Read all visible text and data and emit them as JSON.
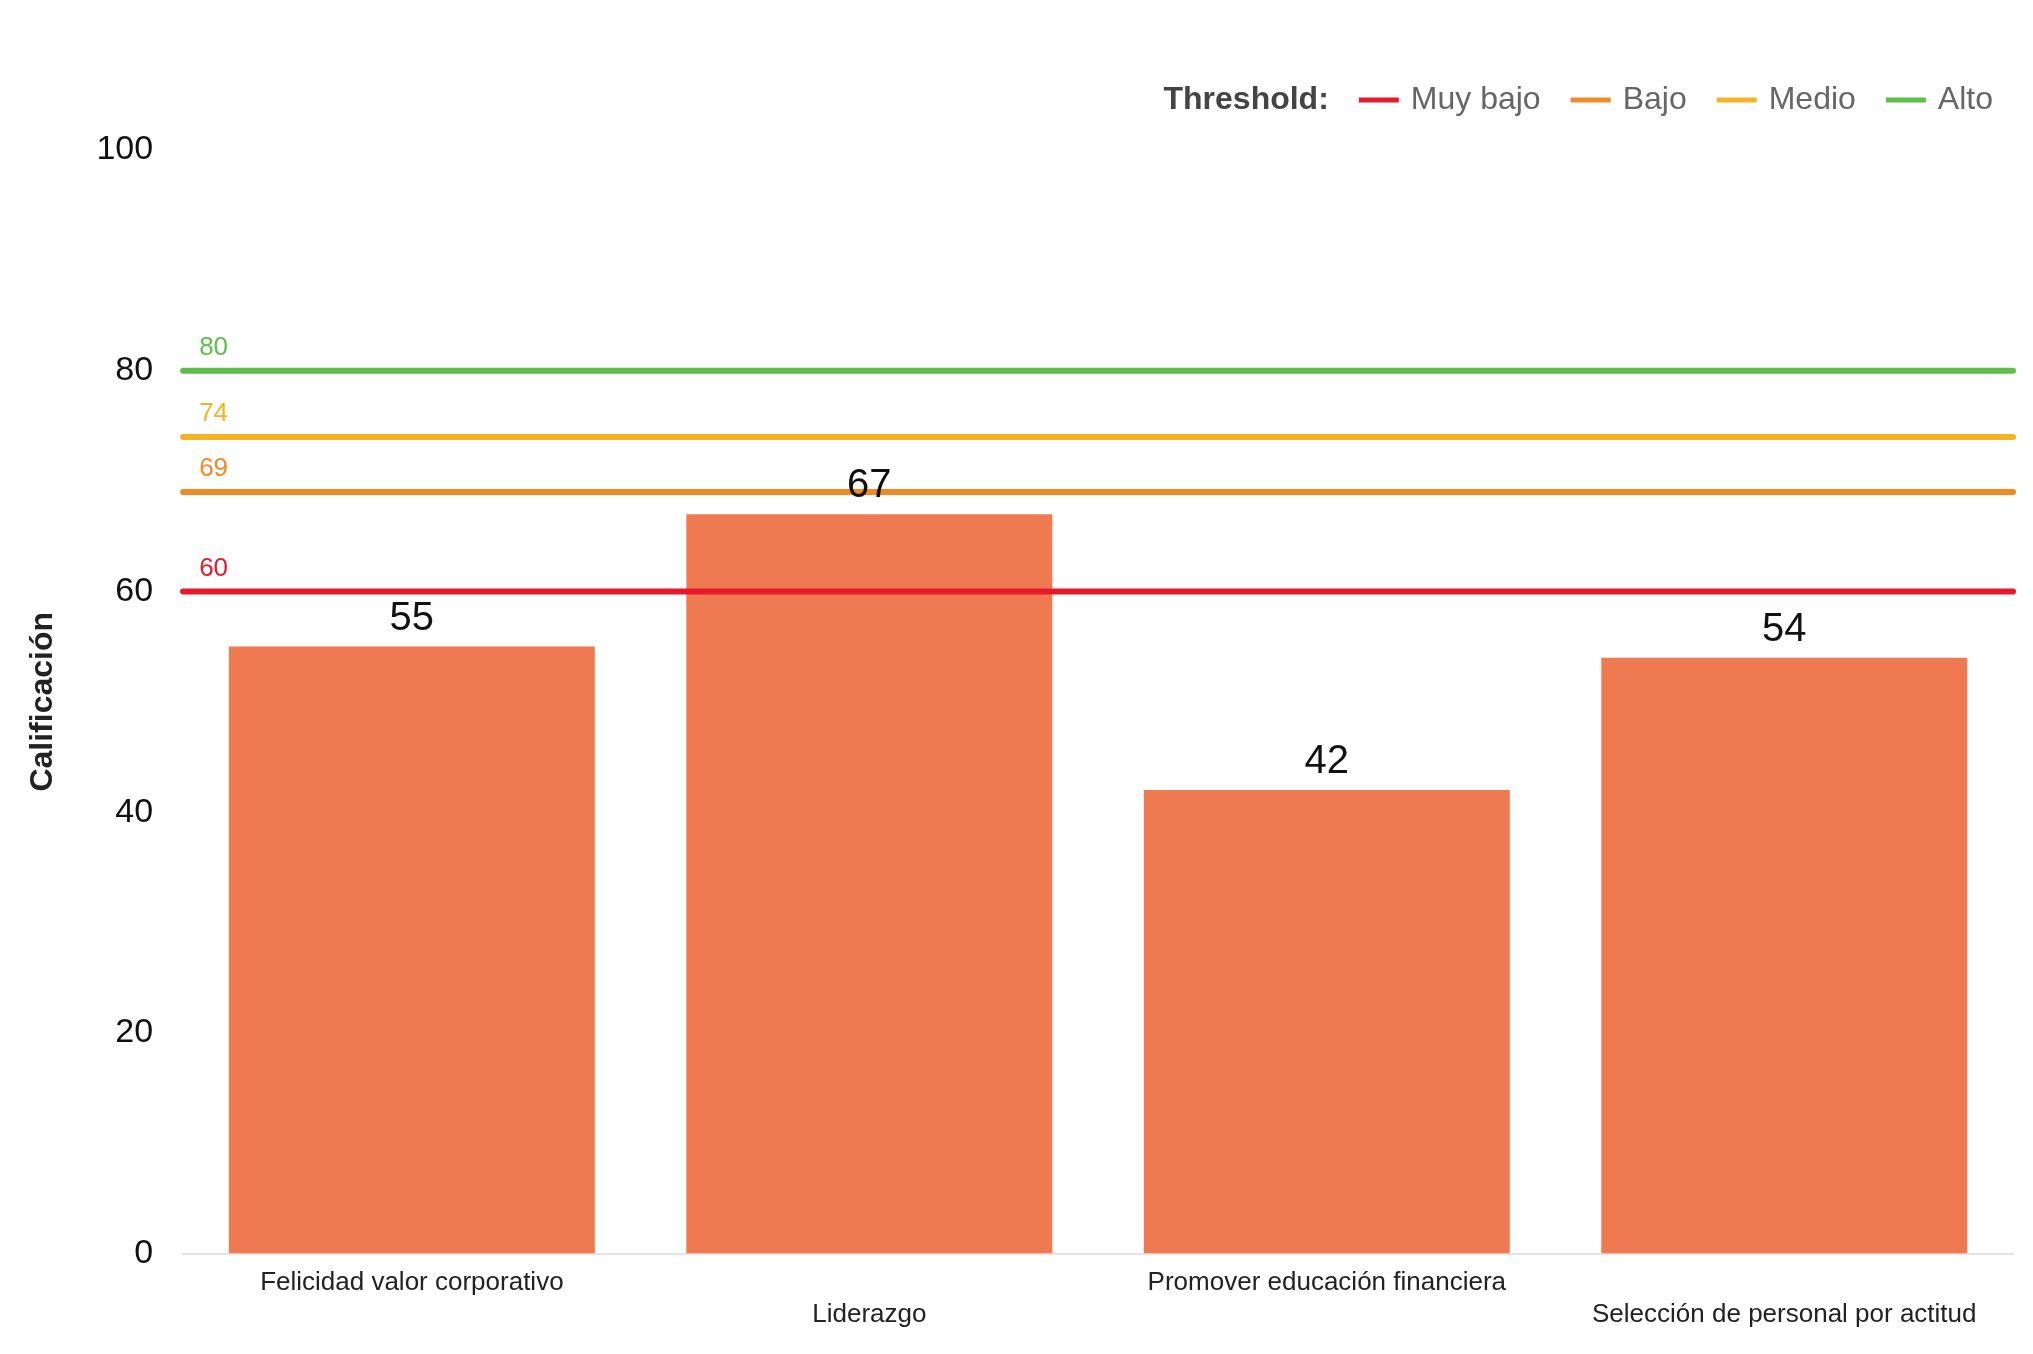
{
  "chart_data": {
    "type": "bar",
    "categories": [
      "Felicidad valor corporativo",
      "Liderazgo",
      "Promover educación financiera",
      "Selección de personal por actitud"
    ],
    "values": [
      55,
      67,
      42,
      54
    ],
    "color": "#ef7a52",
    "data_labels": true,
    "ylabel": "Calificación",
    "ylim": [
      0,
      100
    ],
    "yticks": [
      0,
      20,
      40,
      60,
      80,
      100
    ],
    "grid": false,
    "legend": "top right",
    "legend_title": "Threshold:",
    "ref_lines": [
      {
        "axis": "y",
        "value": 60,
        "label": "Muy bajo",
        "color": "#e8192c"
      },
      {
        "axis": "y",
        "value": 69,
        "label": "Bajo",
        "color": "#f08a24"
      },
      {
        "axis": "y",
        "value": 74,
        "label": "Medio",
        "color": "#f5b323"
      },
      {
        "axis": "y",
        "value": 80,
        "label": "Alto",
        "color": "#5cbf4a"
      }
    ],
    "annotations": [
      {
        "text": "60",
        "y": 60
      },
      {
        "text": "69",
        "y": 69
      },
      {
        "text": "74",
        "y": 74
      },
      {
        "text": "80",
        "y": 80
      }
    ]
  }
}
